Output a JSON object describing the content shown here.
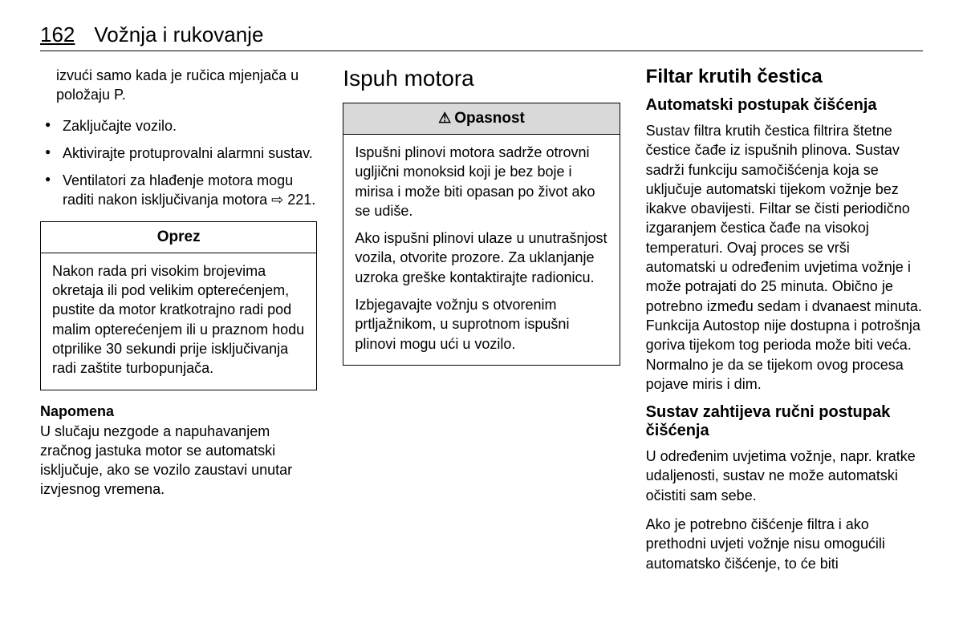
{
  "header": {
    "page_number": "162",
    "title": "Vožnja i rukovanje"
  },
  "col1": {
    "cont_text": "izvući samo kada je ručica mjenjača u položaju P.",
    "bullets": [
      "Zaključajte vozilo.",
      "Aktivirajte protuprovalni alarmni sustav.",
      "Ventilatori za hlađenje motora mogu raditi nakon isključivanja motora ⇨ 221."
    ],
    "caution_box": {
      "title": "Oprez",
      "body": "Nakon rada pri visokim brojevima okretaja ili pod velikim opterećenjem, pustite da motor kratkotrajno radi pod malim opterećenjem ili u praznom hodu otprilike 30 sekundi prije isključivanja radi zaštite turbopunjača."
    },
    "note": {
      "title": "Napomena",
      "body": "U slučaju nezgode a napuhavanjem zračnog jastuka motor se automatski isključuje, ako se vozilo zaustavi unutar izvjesnog vremena."
    }
  },
  "col2": {
    "heading": "Ispuh motora",
    "danger_box": {
      "title": "Opasnost",
      "p1": "Ispušni plinovi motora sadrže otrovni ugljični monoksid koji je bez boje i mirisa i može biti opasan po život ako se udiše.",
      "p2": "Ako ispušni plinovi ulaze u unutrašnjost vozila, otvorite prozore. Za uklanjanje uzroka greške kontaktirajte radionicu.",
      "p3": "Izbjegavajte vožnju s otvorenim prtljažnikom, u suprotnom ispušni plinovi mogu ući u vozilo."
    }
  },
  "col3": {
    "heading": "Filtar krutih čestica",
    "sub1": "Automatski postupak čišćenja",
    "p1": "Sustav filtra krutih čestica filtrira štetne čestice čađe iz ispušnih plinova. Sustav sadrži funkciju samočišćenja koja se uključuje automatski tijekom vožnje bez ikakve obavijesti. Filtar se čisti periodično izgaranjem čestica čađe na visokoj temperaturi. Ovaj proces se vrši automatski u određenim uvjetima vožnje i može potrajati do 25 minuta. Obično je potrebno između sedam i dvanaest minuta. Funkcija Autostop nije dostupna i potrošnja goriva tijekom tog perioda može biti veća. Normalno je da se tijekom ovog procesa pojave miris i dim.",
    "sub2": "Sustav zahtijeva ručni postupak čišćenja",
    "p2": "U određenim uvjetima vožnje, napr. kratke udaljenosti, sustav ne može automatski očistiti sam sebe.",
    "p3": "Ako je potrebno čišćenje filtra i ako prethodni uvjeti vožnje nisu omogućili automatsko čišćenje, to će biti"
  }
}
